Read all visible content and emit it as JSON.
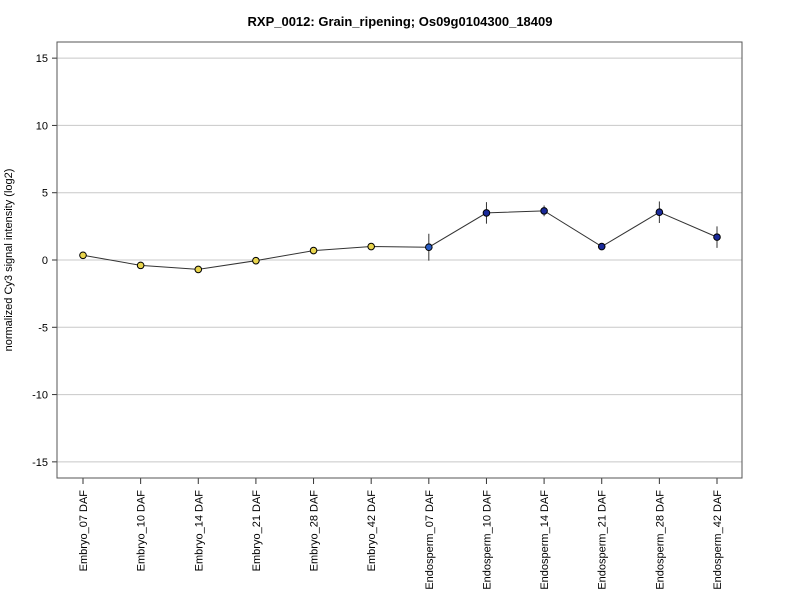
{
  "chart_data": {
    "type": "line",
    "title": "RXP_0012: Grain_ripening; Os09g0104300_18409",
    "ylabel": "normalized Cy3 signal intensity (log2)",
    "xlabel": "",
    "ylim": [
      -16.2,
      16.2
    ],
    "yticks": [
      -15,
      -10,
      -5,
      0,
      5,
      10,
      15
    ],
    "grid": true,
    "categories": [
      "Embryo_07 DAF",
      "Embryo_10 DAF",
      "Embryo_14 DAF",
      "Embryo_21 DAF",
      "Embryo_28 DAF",
      "Embryo_42 DAF",
      "Endosperm_07 DAF",
      "Endosperm_10 DAF",
      "Endosperm_14 DAF",
      "Endosperm_21 DAF",
      "Endosperm_28 DAF",
      "Endosperm_42 DAF"
    ],
    "values": [
      0.35,
      -0.4,
      -0.7,
      -0.05,
      0.7,
      1.0,
      0.95,
      3.5,
      3.65,
      1.0,
      3.55,
      1.7
    ],
    "errors": [
      0.1,
      0.15,
      0.1,
      0.1,
      0.2,
      0.15,
      1.0,
      0.8,
      0.4,
      0.2,
      0.8,
      0.8
    ],
    "point_colors": [
      "#e8d44d",
      "#e8d44d",
      "#e8d44d",
      "#e8d44d",
      "#e8d44d",
      "#e8d44d",
      "#2a5cc4",
      "#1a2a9a",
      "#1a2a9a",
      "#1a2a9a",
      "#1a2a9a",
      "#1a2a9a"
    ]
  }
}
